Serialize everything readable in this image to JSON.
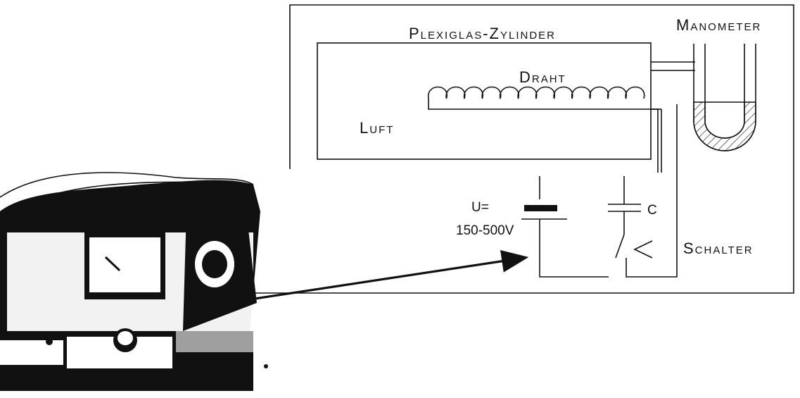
{
  "labels": {
    "cylinder": "Plexiglas-Zylinder",
    "manometer": "Manometer",
    "wire": "Draht",
    "air": "Luft",
    "voltage": "U=",
    "voltage_range": "150-500V",
    "capacitor": "C",
    "switch": "Schalter"
  },
  "photo": {
    "icon": "apparatus-photo-icon"
  },
  "colors": {
    "ink": "#111111",
    "background": "#ffffff"
  }
}
